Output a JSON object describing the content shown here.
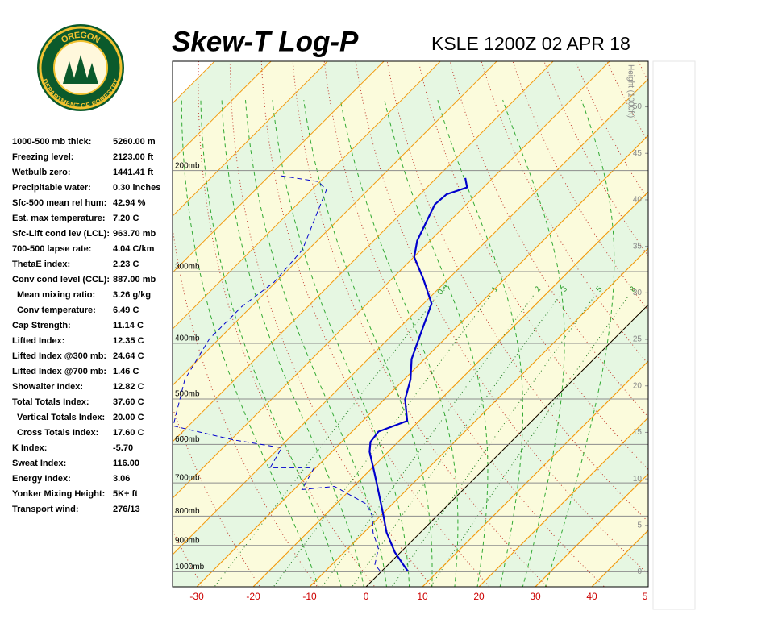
{
  "logo": {
    "top": "OREGON",
    "bottom": "DEPARTMENT OF FORESTRY"
  },
  "stats": [
    {
      "label": "1000-500 mb thick:",
      "value": "5260.00 m"
    },
    {
      "label": "Freezing level:",
      "value": "2123.00 ft"
    },
    {
      "label": "Wetbulb zero:",
      "value": "1441.41 ft"
    },
    {
      "label": "Precipitable water:",
      "value": "0.30 inches"
    },
    {
      "label": "Sfc-500 mean rel hum:",
      "value": "42.94 %"
    },
    {
      "label": "Est. max temperature:",
      "value": "7.20 C"
    },
    {
      "label": "Sfc-Lift cond lev (LCL):",
      "value": "963.70 mb"
    },
    {
      "label": "700-500 lapse rate:",
      "value": "4.04 C/km"
    },
    {
      "label": "ThetaE index:",
      "value": "2.23 C"
    },
    {
      "label": "Conv cond level (CCL):",
      "value": "887.00 mb"
    },
    {
      "label": "Mean mixing ratio:",
      "value": "3.26 g/kg"
    },
    {
      "label": "Conv temperature:",
      "value": "6.49 C"
    },
    {
      "label": "Cap Strength:",
      "value": "11.14 C"
    },
    {
      "label": "Lifted Index:",
      "value": "12.35 C"
    },
    {
      "label": "Lifted Index @300 mb:",
      "value": "24.64 C"
    },
    {
      "label": "Lifted Index @700 mb:",
      "value": "1.46 C"
    },
    {
      "label": "Showalter Index:",
      "value": "12.82 C"
    },
    {
      "label": "Total Totals Index:",
      "value": "37.60 C"
    },
    {
      "label": "Vertical Totals Index:",
      "value": "20.00 C"
    },
    {
      "label": "Cross Totals Index:",
      "value": "17.60 C"
    },
    {
      "label": "K Index:",
      "value": "-5.70"
    },
    {
      "label": "Sweat Index:",
      "value": "116.00"
    },
    {
      "label": "Energy Index:",
      "value": "3.06"
    },
    {
      "label": "Yonker Mixing Height:",
      "value": "5K+ ft"
    },
    {
      "label": "Transport wind:",
      "value": "276/13"
    }
  ],
  "chart_data": {
    "type": "skewt",
    "title": "Skew-T Log-P",
    "subtitle": "KSLE 1200Z 02 APR 18",
    "xlim": [
      -34.3,
      50
    ],
    "xticks": [
      -30,
      -20,
      -10,
      0,
      10,
      20,
      30,
      40,
      {
        "value": 50,
        "label": "5"
      }
    ],
    "ylim": [
      1062,
      129
    ],
    "ylog": true,
    "yticks": [
      {
        "value": 200,
        "label": "200mb"
      },
      {
        "value": 300,
        "label": "300mb"
      },
      {
        "value": 400,
        "label": "400mb"
      },
      {
        "value": 500,
        "label": "500mb"
      },
      {
        "value": 600,
        "label": "600mb"
      },
      {
        "value": 700,
        "label": "700mb"
      },
      {
        "value": 800,
        "label": "800mb"
      },
      {
        "value": 900,
        "label": "900mb"
      },
      {
        "value": 1000,
        "label": "1000mb"
      }
    ],
    "y2label": "Height (1000ft)",
    "y2lim": [
      -1.6,
      54.9
    ],
    "y2ticks": [
      0,
      5,
      10,
      15,
      20,
      25,
      30,
      35,
      40,
      45,
      50
    ],
    "mixing_ratios": [
      0.4,
      1,
      2,
      3,
      5,
      8
    ],
    "series": [
      {
        "color": "#0000cc",
        "dashed": false,
        "pressure": [
          997,
          971,
          925,
          854,
          787,
          726,
          670,
          618,
          594,
          570,
          546,
          501,
          462,
          426,
          393,
          341,
          308,
          283,
          265,
          229,
          220,
          214,
          206
        ],
        "values": [
          4.6,
          2.6,
          -1.0,
          -6.0,
          -10.3,
          -14.6,
          -18.9,
          -23.3,
          -24.9,
          -25.3,
          -22.1,
          -26.3,
          -28.9,
          -32.3,
          -34.6,
          -38.6,
          -44.6,
          -49.9,
          -52.3,
          -55.6,
          -55.3,
          -52.9,
          -54.9
        ]
      },
      {
        "color": "#0000cc",
        "dashed": true,
        "pressure": [
          997,
          971,
          911,
          854,
          800,
          762,
          710,
          719,
          659,
          659,
          608,
          589,
          557,
          462,
          393,
          345,
          313,
          275,
          234,
          216,
          209,
          204
        ],
        "values": [
          -0.3,
          -2.4,
          -4.6,
          -8.4,
          -11.4,
          -14.6,
          -23.4,
          -28.6,
          -30.3,
          -38.1,
          -39.6,
          -49.6,
          -62.7,
          -68.9,
          -71.7,
          -71.7,
          -70.3,
          -71.0,
          -75.3,
          -77.4,
          -80.3,
          -88.4
        ]
      }
    ]
  }
}
